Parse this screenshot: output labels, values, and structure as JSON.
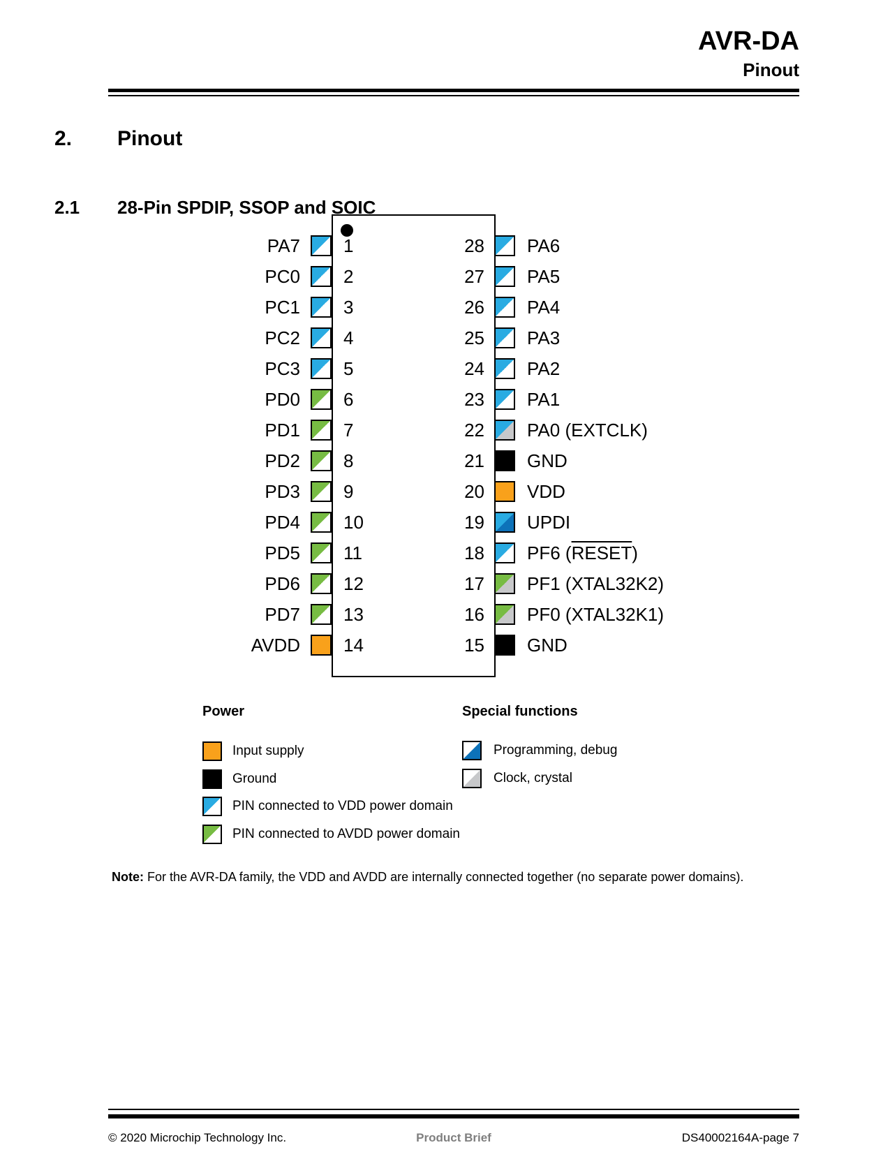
{
  "header": {
    "title": "AVR-DA",
    "subtitle": "Pinout"
  },
  "section": {
    "number": "2.",
    "title": "Pinout"
  },
  "subsection": {
    "number": "2.1",
    "title": "28-Pin SPDIP, SSOP and SOIC"
  },
  "colors": {
    "vdd_domain_cyan": "#29ABE2",
    "avdd_domain_green": "#77BC43",
    "input_supply_orange": "#F9A11B",
    "programming_blue": "#0D72B9",
    "clock_gray": "#C7C8CA",
    "ground_black": "#000000",
    "white": "#FFFFFF",
    "swatches": {
      "vdd": {
        "tl": "#29ABE2",
        "br": "#FFFFFF"
      },
      "avdd": {
        "tl": "#77BC43",
        "br": "#FFFFFF"
      },
      "vdd_clock": {
        "tl": "#29ABE2",
        "br": "#C7C8CA"
      },
      "vdd_prog": {
        "tl": "#29ABE2",
        "br": "#0D72B9"
      },
      "avdd_clock": {
        "tl": "#77BC43",
        "br": "#C7C8CA"
      },
      "supply": {
        "tl": "#F9A11B",
        "br": "#F9A11B"
      },
      "ground": {
        "tl": "#000000",
        "br": "#000000"
      },
      "prog": {
        "tl": "#FFFFFF",
        "br": "#0D72B9"
      },
      "clock": {
        "tl": "#FFFFFF",
        "br": "#C7C8CA"
      }
    }
  },
  "chip": {
    "left_pins": [
      {
        "number": "1",
        "parts": [
          {
            "t": "PA7"
          }
        ],
        "type": "vdd"
      },
      {
        "number": "2",
        "parts": [
          {
            "t": "PC0"
          }
        ],
        "type": "vdd"
      },
      {
        "number": "3",
        "parts": [
          {
            "t": "PC1"
          }
        ],
        "type": "vdd"
      },
      {
        "number": "4",
        "parts": [
          {
            "t": "PC2"
          }
        ],
        "type": "vdd"
      },
      {
        "number": "5",
        "parts": [
          {
            "t": "PC3"
          }
        ],
        "type": "vdd"
      },
      {
        "number": "6",
        "parts": [
          {
            "t": "PD0"
          }
        ],
        "type": "avdd"
      },
      {
        "number": "7",
        "parts": [
          {
            "t": "PD1"
          }
        ],
        "type": "avdd"
      },
      {
        "number": "8",
        "parts": [
          {
            "t": "PD2"
          }
        ],
        "type": "avdd"
      },
      {
        "number": "9",
        "parts": [
          {
            "t": "PD3"
          }
        ],
        "type": "avdd"
      },
      {
        "number": "10",
        "parts": [
          {
            "t": "PD4"
          }
        ],
        "type": "avdd"
      },
      {
        "number": "11",
        "parts": [
          {
            "t": "PD5"
          }
        ],
        "type": "avdd"
      },
      {
        "number": "12",
        "parts": [
          {
            "t": "PD6"
          }
        ],
        "type": "avdd"
      },
      {
        "number": "13",
        "parts": [
          {
            "t": "PD7"
          }
        ],
        "type": "avdd"
      },
      {
        "number": "14",
        "parts": [
          {
            "t": "AVDD"
          }
        ],
        "type": "supply"
      }
    ],
    "right_pins": [
      {
        "number": "28",
        "parts": [
          {
            "t": "PA6"
          }
        ],
        "type": "vdd"
      },
      {
        "number": "27",
        "parts": [
          {
            "t": "PA5"
          }
        ],
        "type": "vdd"
      },
      {
        "number": "26",
        "parts": [
          {
            "t": "PA4"
          }
        ],
        "type": "vdd"
      },
      {
        "number": "25",
        "parts": [
          {
            "t": "PA3"
          }
        ],
        "type": "vdd"
      },
      {
        "number": "24",
        "parts": [
          {
            "t": "PA2"
          }
        ],
        "type": "vdd"
      },
      {
        "number": "23",
        "parts": [
          {
            "t": "PA1"
          }
        ],
        "type": "vdd"
      },
      {
        "number": "22",
        "parts": [
          {
            "t": "PA0 (EXTCLK)"
          }
        ],
        "type": "vdd_clock"
      },
      {
        "number": "21",
        "parts": [
          {
            "t": "GND"
          }
        ],
        "type": "ground"
      },
      {
        "number": "20",
        "parts": [
          {
            "t": "VDD"
          }
        ],
        "type": "supply"
      },
      {
        "number": "19",
        "parts": [
          {
            "t": "UPDI"
          }
        ],
        "type": "vdd_prog"
      },
      {
        "number": "18",
        "parts": [
          {
            "t": "PF6 ("
          },
          {
            "t": "RESET",
            "over": true
          },
          {
            "t": ")"
          }
        ],
        "type": "vdd"
      },
      {
        "number": "17",
        "parts": [
          {
            "t": "PF1 (XTAL32K2)"
          }
        ],
        "type": "avdd_clock"
      },
      {
        "number": "16",
        "parts": [
          {
            "t": "PF0 (XTAL32K1)"
          }
        ],
        "type": "avdd_clock"
      },
      {
        "number": "15",
        "parts": [
          {
            "t": "GND"
          }
        ],
        "type": "ground"
      }
    ]
  },
  "legend": {
    "power": {
      "title": "Power",
      "items": [
        {
          "label": "Input supply",
          "type": "supply"
        },
        {
          "label": "Ground",
          "type": "ground"
        },
        {
          "label": "PIN connected to VDD power domain",
          "type": "vdd"
        },
        {
          "label": "PIN connected to AVDD power domain",
          "type": "avdd"
        }
      ]
    },
    "special": {
      "title": "Special functions",
      "items": [
        {
          "label": "Programming, debug",
          "type": "prog"
        },
        {
          "label": "Clock, crystal",
          "type": "clock"
        }
      ]
    }
  },
  "note": {
    "label": "Note:",
    "text": " For the AVR-DA family, the VDD and AVDD are internally connected together (no separate power domains)."
  },
  "footer": {
    "left": "© 2020 Microchip Technology Inc.",
    "center": "Product Brief",
    "right": "DS40002164A-page 7"
  }
}
